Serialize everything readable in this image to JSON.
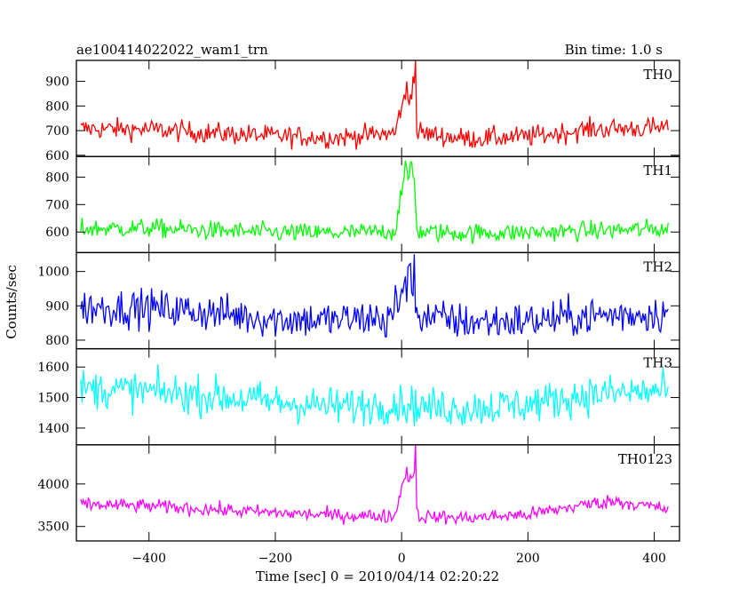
{
  "chart_data": {
    "type": "line",
    "title": "ae100414022022_wam1_trn",
    "bin_time_label": "Bin time: 1.0 s",
    "xlabel": "Time [sec] 0 = 2010/04/14 02:20:22",
    "ylabel": "Counts/sec",
    "xlim": [
      -515,
      440
    ],
    "xticks": [
      -400,
      -200,
      0,
      200,
      400
    ],
    "x_tick_labels": [
      "−400",
      "−200",
      "0",
      "200",
      "400"
    ],
    "trigger_time": 0,
    "burst_interval": [
      0,
      24
    ],
    "sample_step": 2,
    "x_data_range": [
      -508,
      422
    ],
    "panels": [
      {
        "name": "TH0",
        "color": "#ff0000",
        "ylim": [
          595,
          985
        ],
        "yticks": [
          600,
          700,
          800,
          900
        ],
        "baseline": [
          [
            -508,
            708
          ],
          [
            -400,
            705
          ],
          [
            -300,
            690
          ],
          [
            -200,
            678
          ],
          [
            -100,
            672
          ],
          [
            -10,
            690
          ],
          [
            0,
            810
          ],
          [
            12,
            830
          ],
          [
            22,
            880
          ],
          [
            24,
            700
          ],
          [
            30,
            690
          ],
          [
            100,
            668
          ],
          [
            200,
            675
          ],
          [
            300,
            706
          ],
          [
            422,
            712
          ]
        ],
        "noise_amplitude": 42,
        "spikes": [
          [
            8,
            900
          ],
          [
            18,
            920
          ],
          [
            22,
            985
          ]
        ]
      },
      {
        "name": "TH1",
        "color": "#00ff00",
        "ylim": [
          525,
          875
        ],
        "yticks": [
          600,
          700,
          800
        ],
        "baseline": [
          [
            -508,
            612
          ],
          [
            -400,
            614
          ],
          [
            -300,
            605
          ],
          [
            -200,
            598
          ],
          [
            -100,
            596
          ],
          [
            -10,
            603
          ],
          [
            0,
            760
          ],
          [
            10,
            800
          ],
          [
            20,
            800
          ],
          [
            24,
            610
          ],
          [
            30,
            600
          ],
          [
            100,
            596
          ],
          [
            200,
            598
          ],
          [
            300,
            605
          ],
          [
            422,
            612
          ]
        ],
        "noise_amplitude": 34,
        "spikes": [
          [
            6,
            860
          ],
          [
            15,
            855
          ]
        ]
      },
      {
        "name": "TH2",
        "color": "#0000ff",
        "ylim": [
          775,
          1055
        ],
        "yticks": [
          800,
          900,
          1000
        ],
        "baseline": [
          [
            -508,
            895
          ],
          [
            -400,
            893
          ],
          [
            -300,
            880
          ],
          [
            -200,
            862
          ],
          [
            -100,
            858
          ],
          [
            -10,
            870
          ],
          [
            0,
            950
          ],
          [
            15,
            980
          ],
          [
            24,
            880
          ],
          [
            30,
            870
          ],
          [
            100,
            853
          ],
          [
            200,
            856
          ],
          [
            300,
            870
          ],
          [
            422,
            880
          ]
        ],
        "noise_amplitude": 55,
        "spikes": [
          [
            -25,
            810
          ],
          [
            -10,
            960
          ],
          [
            20,
            1050
          ]
        ]
      },
      {
        "name": "TH3",
        "color": "#00ffff",
        "ylim": [
          1345,
          1660
        ],
        "yticks": [
          1400,
          1500,
          1600
        ],
        "baseline": [
          [
            -508,
            1530
          ],
          [
            -400,
            1520
          ],
          [
            -300,
            1505
          ],
          [
            -200,
            1485
          ],
          [
            -100,
            1470
          ],
          [
            0,
            1480
          ],
          [
            30,
            1470
          ],
          [
            100,
            1465
          ],
          [
            200,
            1478
          ],
          [
            300,
            1510
          ],
          [
            422,
            1522
          ]
        ],
        "noise_amplitude": 62,
        "spikes": []
      },
      {
        "name": "TH0123",
        "color": "#ff00ff",
        "ylim": [
          3330,
          4460
        ],
        "yticks": [
          3500,
          4000
        ],
        "baseline": [
          [
            -508,
            3760
          ],
          [
            -400,
            3740
          ],
          [
            -300,
            3700
          ],
          [
            -200,
            3660
          ],
          [
            -100,
            3630
          ],
          [
            -10,
            3620
          ],
          [
            0,
            4000
          ],
          [
            12,
            4080
          ],
          [
            22,
            4150
          ],
          [
            24,
            3650
          ],
          [
            30,
            3620
          ],
          [
            100,
            3600
          ],
          [
            200,
            3640
          ],
          [
            300,
            3770
          ],
          [
            340,
            3800
          ],
          [
            422,
            3700
          ]
        ],
        "noise_amplitude": 80,
        "spikes": [
          [
            8,
            4200
          ],
          [
            22,
            4460
          ]
        ]
      }
    ]
  }
}
